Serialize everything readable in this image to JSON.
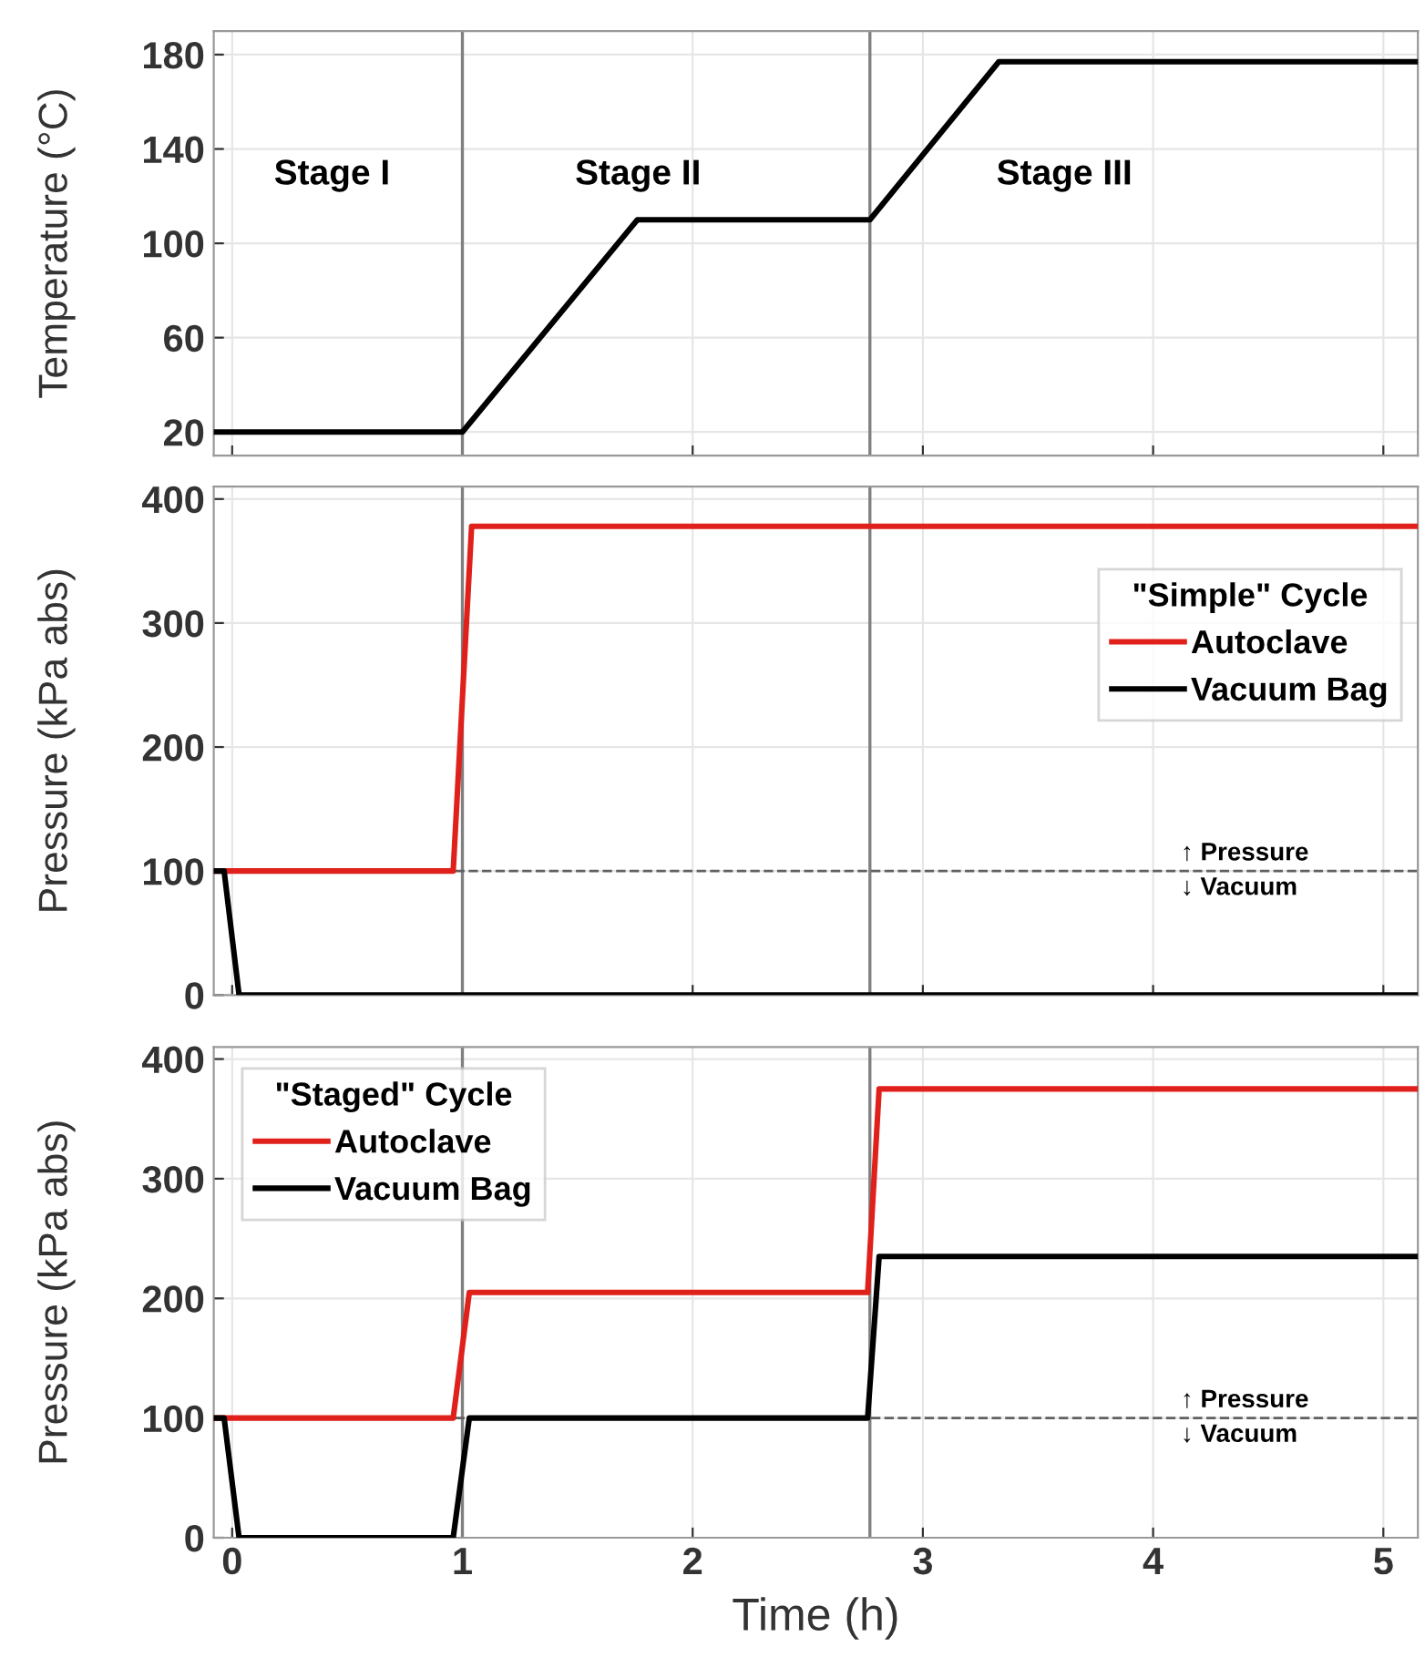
{
  "chart_data": [
    {
      "type": "line",
      "ylabel": "Temperature (°C)",
      "xlim": [
        -0.08,
        5.15
      ],
      "ylim": [
        10,
        190
      ],
      "xticks": [
        0,
        1,
        2,
        3,
        4,
        5
      ],
      "yticks": [
        20,
        60,
        100,
        140,
        180
      ],
      "tick_labels": "y",
      "grid": true,
      "series": [
        {
          "color": "#000000",
          "x": [
            -0.08,
            1.0,
            1.76,
            2.77,
            3.33,
            5.15
          ],
          "values": [
            20,
            20,
            110,
            110,
            177,
            177
          ]
        }
      ],
      "ref_lines": [
        {
          "axis": "x",
          "value": 1.0,
          "color": "#808080"
        },
        {
          "axis": "x",
          "value": 2.77,
          "color": "#808080"
        }
      ],
      "annotations": [
        "Stage I",
        "Stage II",
        "Stage III"
      ]
    },
    {
      "type": "line",
      "ylabel": "Pressure (kPa abs)",
      "xlim": [
        -0.08,
        5.15
      ],
      "ylim": [
        0,
        410
      ],
      "xticks": [
        0,
        1,
        2,
        3,
        4,
        5
      ],
      "yticks": [
        0,
        100,
        200,
        300,
        400
      ],
      "tick_labels": "y",
      "grid": true,
      "legend": "top right",
      "legend_title": "\"Simple\" Cycle",
      "series": [
        {
          "name": "Autoclave",
          "color": "#e0201b",
          "x": [
            -0.08,
            0.96,
            1.04,
            5.15
          ],
          "values": [
            100,
            100,
            378,
            378
          ]
        },
        {
          "name": "Vacuum Bag",
          "color": "#000000",
          "x": [
            -0.08,
            -0.035,
            0.03,
            5.15
          ],
          "values": [
            100,
            100,
            0,
            0
          ]
        }
      ],
      "ref_lines": [
        {
          "axis": "x",
          "value": 1.0,
          "color": "#808080"
        },
        {
          "axis": "x",
          "value": 2.77,
          "color": "#808080"
        },
        {
          "axis": "y",
          "value": 100,
          "label": "↑ Pressure\n↓ Vacuum",
          "color": "#606060",
          "line_style": "dashed"
        }
      ]
    },
    {
      "type": "line",
      "ylabel": "Pressure (kPa abs)",
      "xlabel": "Time (h)",
      "xlim": [
        -0.08,
        5.15
      ],
      "ylim": [
        0,
        410
      ],
      "xticks": [
        0,
        1,
        2,
        3,
        4,
        5
      ],
      "yticks": [
        0,
        100,
        200,
        300,
        400
      ],
      "grid": true,
      "legend": "top left",
      "legend_title": "\"Staged\" Cycle",
      "series": [
        {
          "name": "Autoclave",
          "color": "#e0201b",
          "x": [
            -0.08,
            0.96,
            1.03,
            2.76,
            2.81,
            5.15
          ],
          "values": [
            100,
            100,
            205,
            205,
            375,
            375
          ]
        },
        {
          "name": "Vacuum Bag",
          "color": "#000000",
          "x": [
            -0.08,
            -0.035,
            0.03,
            0.96,
            1.03,
            2.76,
            2.81,
            5.15
          ],
          "values": [
            100,
            100,
            0,
            0,
            100,
            100,
            235,
            235
          ]
        }
      ],
      "ref_lines": [
        {
          "axis": "x",
          "value": 1.0,
          "color": "#808080"
        },
        {
          "axis": "x",
          "value": 2.77,
          "color": "#808080"
        },
        {
          "axis": "y",
          "value": 100,
          "label": "↑ Pressure\n↓ Vacuum",
          "color": "#606060",
          "line_style": "dashed"
        }
      ]
    }
  ]
}
